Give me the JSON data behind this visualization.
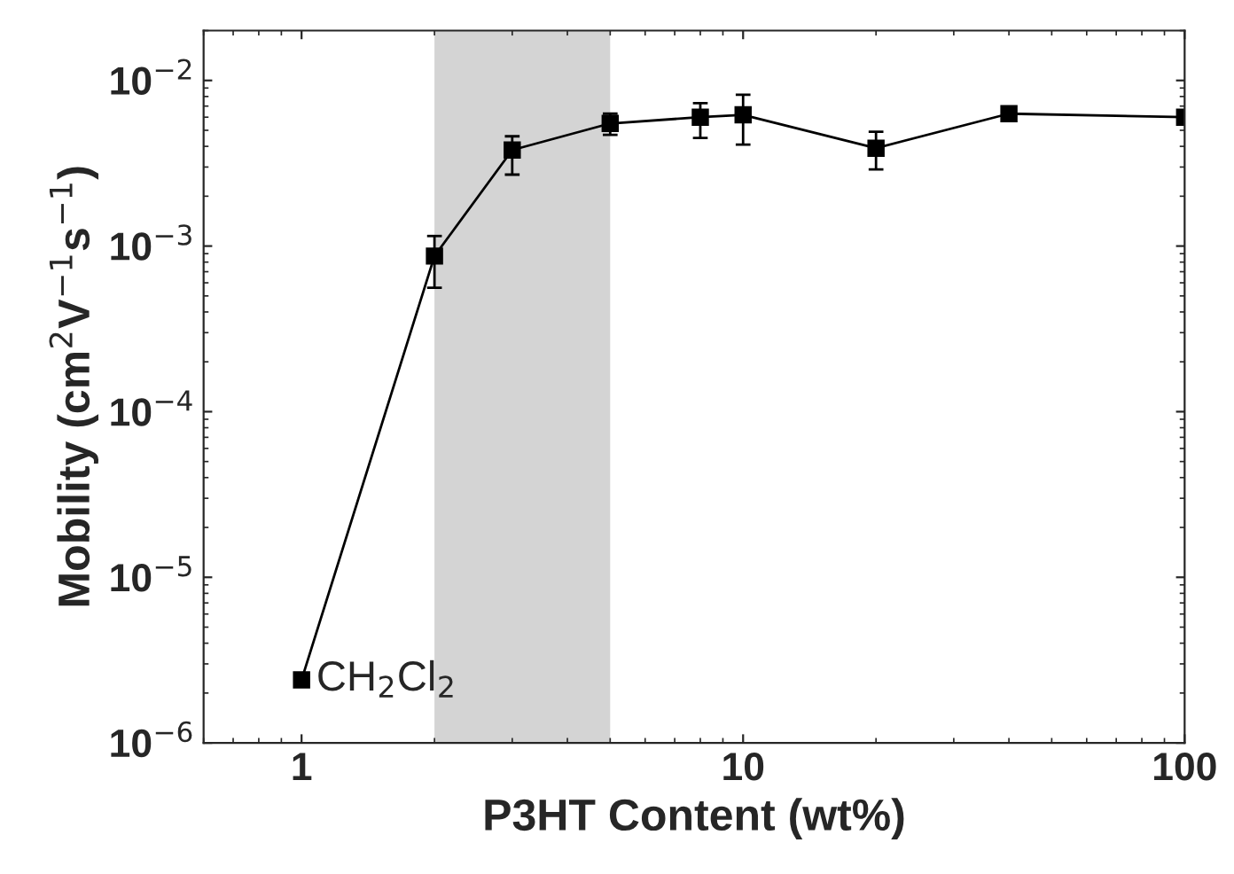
{
  "chart_data": {
    "type": "line",
    "xlabel": "P3HT Content (wt%)",
    "ylabel": "Mobility (cm$^{2}$V$^{−1}$s$^{−1}$)",
    "log": "xy",
    "x": [
      1,
      2,
      3,
      5,
      8,
      10,
      20,
      40,
      100
    ],
    "series": [
      {
        "color": "#000000",
        "values": [
          2.4e-06,
          0.00087,
          0.0038,
          0.0055,
          0.006,
          0.0062,
          0.0039,
          0.0063,
          0.006
        ],
        "errors": [
          null,
          [
            0.00056,
            0.00115
          ],
          [
            0.0027,
            0.0046
          ],
          [
            0.0047,
            0.0063
          ],
          [
            0.0045,
            0.0073
          ],
          [
            0.0041,
            0.0082
          ],
          [
            0.0029,
            0.0049
          ],
          null,
          null
        ]
      }
    ],
    "xlim": [
      0.6,
      100
    ],
    "ylim": [
      1e-06,
      0.02
    ],
    "xticks": [
      1,
      10,
      100
    ],
    "yticks": [
      {
        "value": 1e-06,
        "label": "10$^{−6}$"
      },
      {
        "value": 1e-05,
        "label": "10$^{−5}$"
      },
      {
        "value": 0.0001,
        "label": "10$^{−4}$"
      },
      {
        "value": 0.001,
        "label": "10$^{−3}$"
      },
      {
        "value": 0.01,
        "label": "10$^{−2}$"
      }
    ],
    "bands": [
      {
        "axis": "x",
        "from": 2,
        "to": 5,
        "color": "#d4d4d4"
      }
    ],
    "annotations": [
      {
        "text": "CH$_{2}$Cl$_{2}$",
        "x": 1,
        "y": 2.4e-06
      }
    ],
    "marker": "square",
    "line_style": "solid",
    "grid": false,
    "legend": false
  }
}
